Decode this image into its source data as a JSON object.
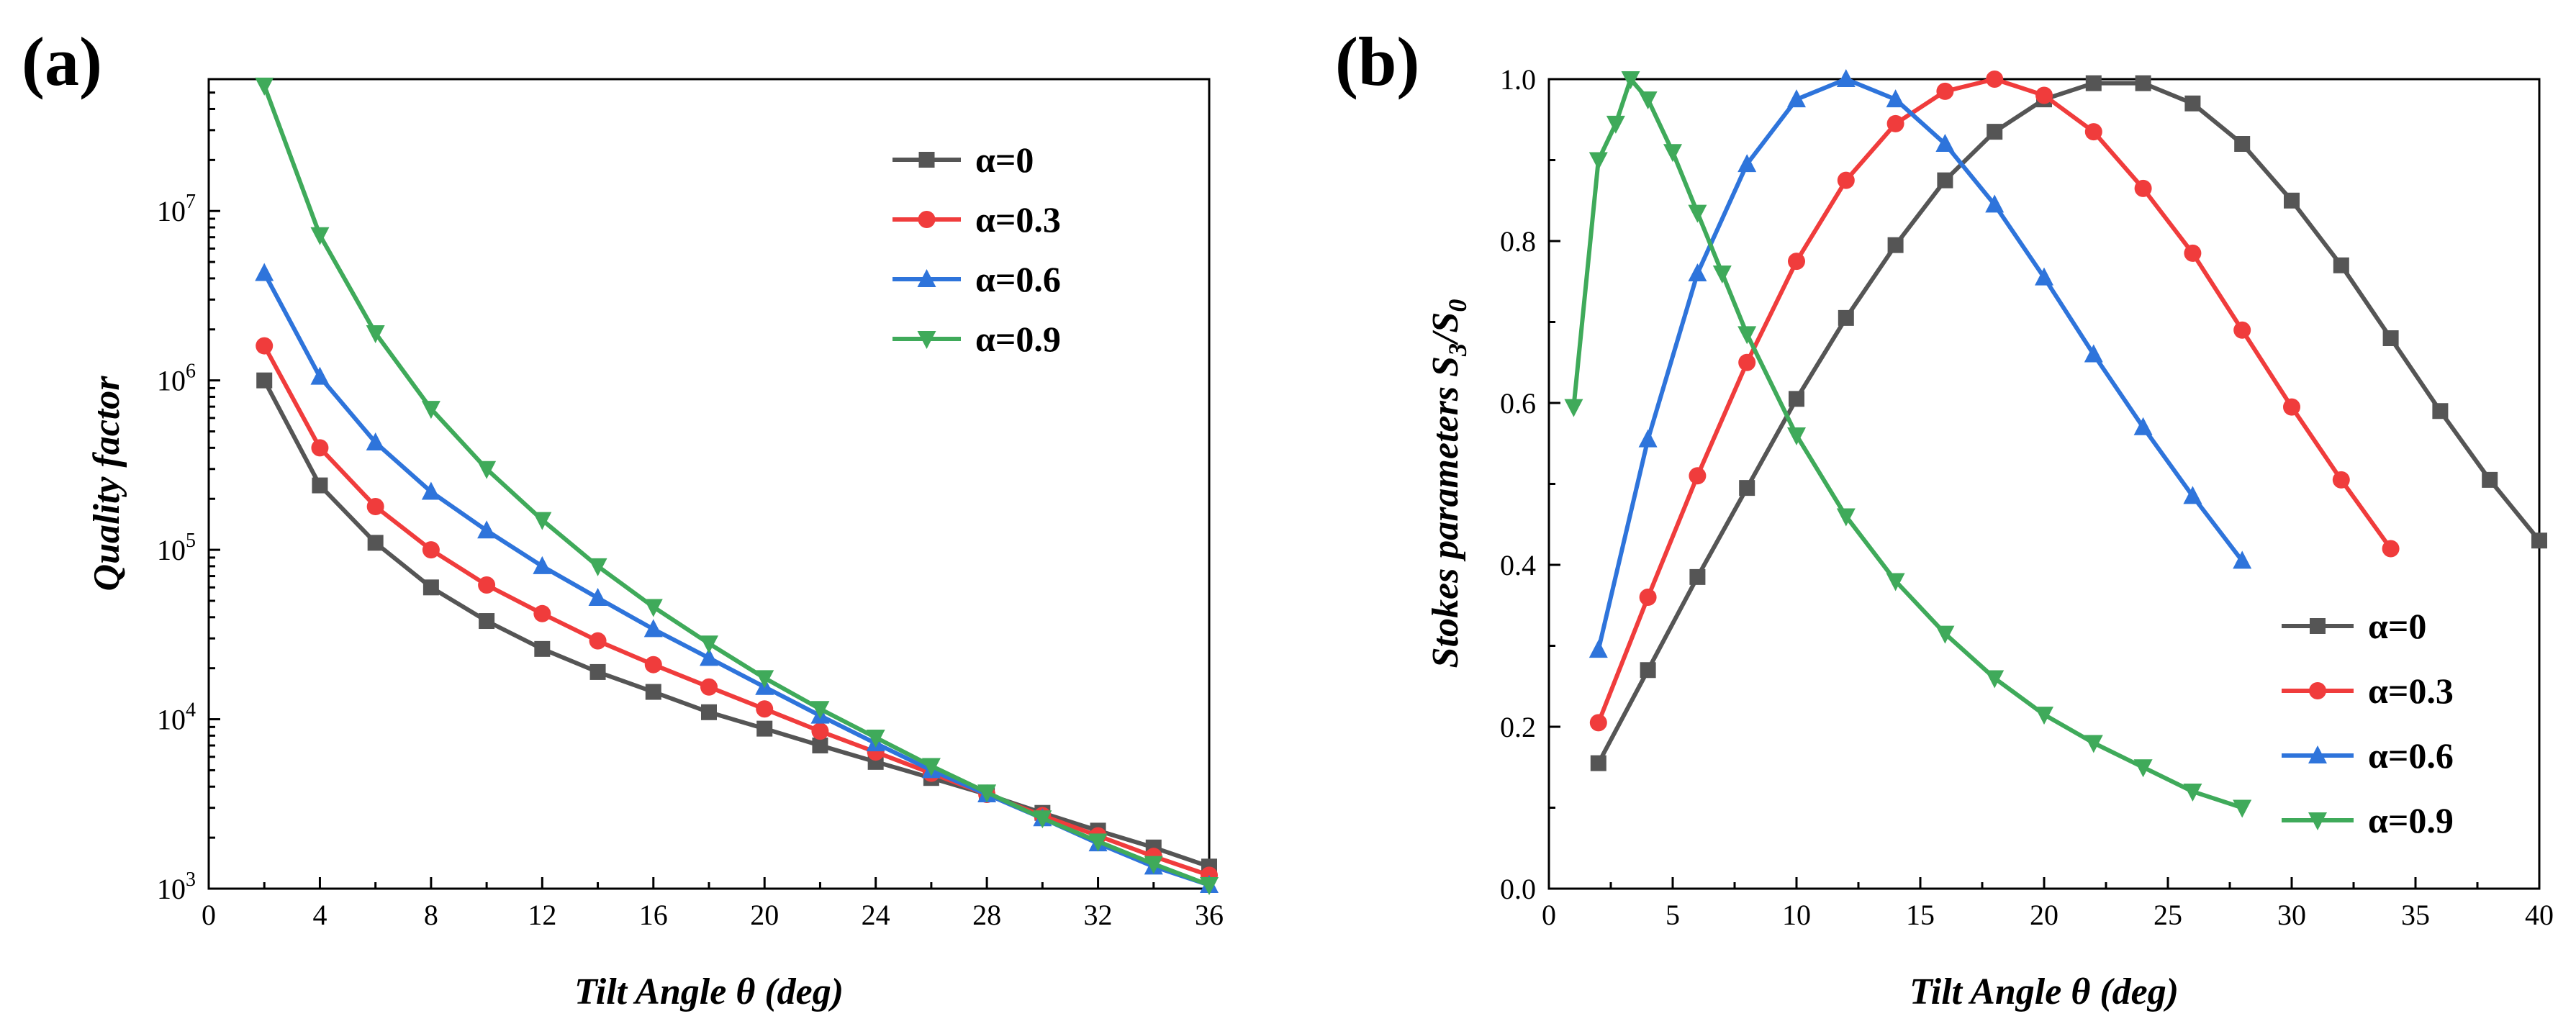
{
  "figure": {
    "panel_a_label": "(a)",
    "panel_b_label": "(b)"
  },
  "colors": {
    "alpha0": "#555555",
    "alpha03": "#f03c3c",
    "alpha06": "#2e74db",
    "alpha09": "#3faa5a"
  },
  "chart_data": [
    {
      "type": "line",
      "id": "a",
      "title": "",
      "xlabel": "Tilt Angle θ (deg)",
      "ylabel": "Quality factor",
      "yscale": "log",
      "xlim": [
        0,
        36
      ],
      "ylim": [
        1000,
        60000000
      ],
      "xticks": [
        0,
        4,
        8,
        12,
        16,
        20,
        24,
        28,
        32,
        36
      ],
      "xtick_labels": [
        "0",
        "4",
        "8",
        "12",
        "16",
        "20",
        "24",
        "28",
        "32",
        "36"
      ],
      "yticks": [
        1000,
        10000,
        100000,
        1000000,
        10000000
      ],
      "ytick_labels": [
        {
          "base": "10",
          "exp": "3"
        },
        {
          "base": "10",
          "exp": "4"
        },
        {
          "base": "10",
          "exp": "5"
        },
        {
          "base": "10",
          "exp": "6"
        },
        {
          "base": "10",
          "exp": "7"
        }
      ],
      "legend_position": "top-right",
      "series": [
        {
          "name": "α=0",
          "marker": "square",
          "color": "#555555",
          "x": [
            2,
            4,
            6,
            8,
            10,
            12,
            14,
            16,
            18,
            20,
            22,
            24,
            26,
            28,
            30,
            32,
            34,
            36
          ],
          "y": [
            1000000,
            240000,
            110000,
            60000,
            38000,
            26000,
            19000,
            14500,
            11000,
            8800,
            7000,
            5600,
            4500,
            3600,
            2800,
            2200,
            1750,
            1350
          ]
        },
        {
          "name": "α=0.3",
          "marker": "circle",
          "color": "#f03c3c",
          "x": [
            2,
            4,
            6,
            8,
            10,
            12,
            14,
            16,
            18,
            20,
            22,
            24,
            26,
            28,
            30,
            32,
            34,
            36
          ],
          "y": [
            1600000,
            400000,
            180000,
            100000,
            62000,
            42000,
            29000,
            21000,
            15500,
            11500,
            8500,
            6400,
            4800,
            3600,
            2700,
            2050,
            1550,
            1200
          ]
        },
        {
          "name": "α=0.6",
          "marker": "triangle-up",
          "color": "#2e74db",
          "x": [
            2,
            4,
            6,
            8,
            10,
            12,
            14,
            16,
            18,
            20,
            22,
            24,
            26,
            28,
            30,
            32,
            34,
            36
          ],
          "y": [
            4300000,
            1050000,
            430000,
            220000,
            130000,
            80000,
            52000,
            34000,
            23000,
            15500,
            10500,
            7200,
            5000,
            3600,
            2600,
            1850,
            1350,
            1050
          ]
        },
        {
          "name": "α=0.9",
          "marker": "triangle-down",
          "color": "#3faa5a",
          "x": [
            2,
            4,
            6,
            8,
            10,
            12,
            14,
            16,
            18,
            20,
            22,
            24,
            26,
            28,
            30,
            32,
            34,
            36
          ],
          "y": [
            55000000,
            7200000,
            1900000,
            680000,
            300000,
            150000,
            80000,
            46000,
            28000,
            17500,
            11500,
            7800,
            5300,
            3700,
            2600,
            1900,
            1400,
            1050
          ]
        }
      ]
    },
    {
      "type": "line",
      "id": "b",
      "title": "",
      "xlabel": "Tilt Angle θ (deg)",
      "ylabel_main": "Stokes parameters ",
      "ylabel_s": "S",
      "ylabel_sub3": "3",
      "ylabel_slash": "/S",
      "ylabel_sub0": "0",
      "xlim": [
        0,
        40
      ],
      "ylim": [
        0,
        1.0
      ],
      "xticks": [
        0,
        5,
        10,
        15,
        20,
        25,
        30,
        35,
        40
      ],
      "xtick_labels": [
        "0",
        "5",
        "10",
        "15",
        "20",
        "25",
        "30",
        "35",
        "40"
      ],
      "yticks": [
        0,
        0.2,
        0.4,
        0.6,
        0.8,
        1.0
      ],
      "ytick_labels": [
        "0.0",
        "0.2",
        "0.4",
        "0.6",
        "0.8",
        "1.0"
      ],
      "legend_position": "bottom-right",
      "series": [
        {
          "name": "α=0",
          "marker": "square",
          "color": "#555555",
          "x": [
            2,
            4,
            6,
            8,
            10,
            12,
            14,
            16,
            18,
            20,
            22,
            24,
            26,
            28,
            30,
            32,
            34,
            36,
            38,
            40
          ],
          "y": [
            0.155,
            0.27,
            0.385,
            0.495,
            0.605,
            0.705,
            0.795,
            0.875,
            0.935,
            0.975,
            0.995,
            0.995,
            0.97,
            0.92,
            0.85,
            0.77,
            0.68,
            0.59,
            0.505,
            0.43
          ]
        },
        {
          "name": "α=0.3",
          "marker": "circle",
          "color": "#f03c3c",
          "x": [
            2,
            4,
            6,
            8,
            10,
            12,
            14,
            16,
            18,
            20,
            22,
            24,
            26,
            28,
            30,
            32,
            34
          ],
          "y": [
            0.205,
            0.36,
            0.51,
            0.65,
            0.775,
            0.875,
            0.945,
            0.985,
            1.0,
            0.98,
            0.935,
            0.865,
            0.785,
            0.69,
            0.595,
            0.505,
            0.42
          ]
        },
        {
          "name": "α=0.6",
          "marker": "triangle-up",
          "color": "#2e74db",
          "x": [
            2,
            4,
            6,
            8,
            10,
            12,
            14,
            16,
            18,
            20,
            22,
            24,
            26,
            28
          ],
          "y": [
            0.295,
            0.555,
            0.76,
            0.895,
            0.975,
            1.0,
            0.975,
            0.92,
            0.845,
            0.755,
            0.66,
            0.57,
            0.485,
            0.405
          ]
        },
        {
          "name": "α=0.9",
          "marker": "triangle-down",
          "color": "#3faa5a",
          "x": [
            1,
            2,
            2.7,
            3.3,
            4,
            5,
            6,
            7,
            8,
            10,
            12,
            14,
            16,
            18,
            20,
            22,
            24,
            26,
            28
          ],
          "y": [
            0.595,
            0.9,
            0.945,
            1.0,
            0.975,
            0.91,
            0.835,
            0.76,
            0.685,
            0.56,
            0.46,
            0.38,
            0.315,
            0.26,
            0.215,
            0.18,
            0.15,
            0.12,
            0.1
          ]
        }
      ]
    }
  ]
}
